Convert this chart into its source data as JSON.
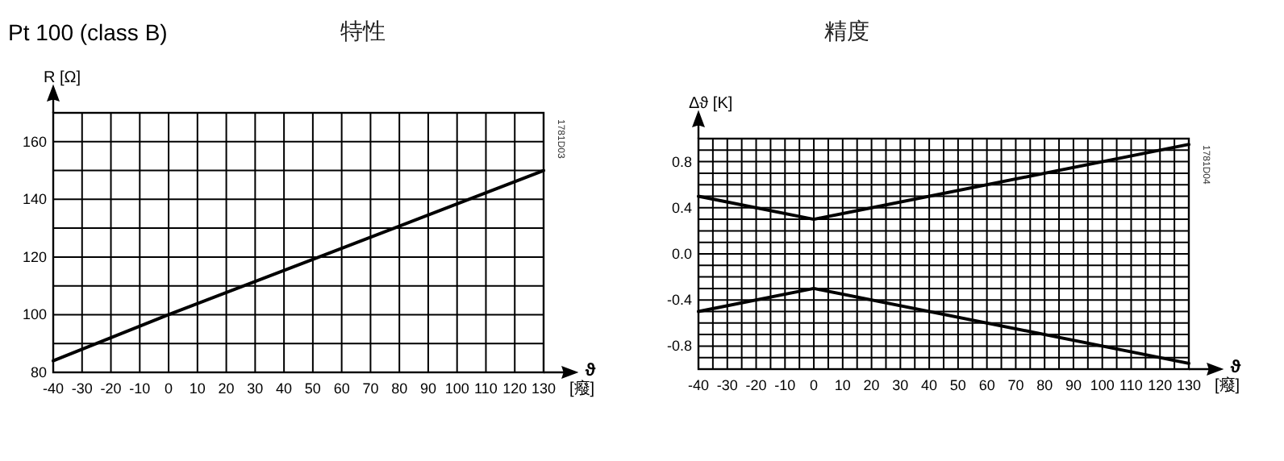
{
  "chart_data": [
    {
      "type": "line",
      "title": "特性",
      "subtitle": "Pt 100 (class B)",
      "xlabel": "ϑ",
      "ylabel": "R [Ω]",
      "annotations": [
        "[癈]",
        "1781D03"
      ],
      "grid": true,
      "xlim": [
        -40,
        130
      ],
      "ylim": [
        80,
        170
      ],
      "xticks": [
        -40,
        -30,
        -20,
        -10,
        0,
        10,
        20,
        30,
        40,
        50,
        60,
        70,
        80,
        90,
        100,
        110,
        120,
        130
      ],
      "yticks": [
        80,
        {
          "value": 90,
          "label": null
        },
        100,
        {
          "value": 110,
          "label": null
        },
        120,
        {
          "value": 130,
          "label": null
        },
        140,
        {
          "value": 150,
          "label": null
        },
        160,
        {
          "value": 170,
          "label": null
        }
      ],
      "series": [
        {
          "color": "#000000",
          "x": [
            -40,
            0,
            60,
            130
          ],
          "values": [
            84,
            100,
            123,
            150
          ]
        }
      ]
    },
    {
      "type": "line",
      "title": "精度",
      "xlabel": "ϑ",
      "ylabel": "Δϑ [K]",
      "annotations": [
        "[癈]",
        "1781D04"
      ],
      "grid": true,
      "xlim": [
        -40,
        130
      ],
      "ylim": [
        -1.0,
        1.0
      ],
      "xticks": [
        -40,
        {
          "value": -35,
          "label": null
        },
        -30,
        {
          "value": -25,
          "label": null
        },
        -20,
        {
          "value": -15,
          "label": null
        },
        -10,
        {
          "value": -5,
          "label": null
        },
        0,
        {
          "value": 5,
          "label": null
        },
        10,
        {
          "value": 15,
          "label": null
        },
        20,
        {
          "value": 25,
          "label": null
        },
        30,
        {
          "value": 35,
          "label": null
        },
        40,
        {
          "value": 45,
          "label": null
        },
        50,
        {
          "value": 55,
          "label": null
        },
        60,
        {
          "value": 65,
          "label": null
        },
        70,
        {
          "value": 75,
          "label": null
        },
        80,
        {
          "value": 85,
          "label": null
        },
        90,
        {
          "value": 95,
          "label": null
        },
        100,
        {
          "value": 105,
          "label": null
        },
        110,
        {
          "value": 115,
          "label": null
        },
        120,
        {
          "value": 125,
          "label": null
        },
        130
      ],
      "yticks": [
        {
          "value": -1.0,
          "label": null
        },
        {
          "value": -0.9,
          "label": null
        },
        -0.8,
        {
          "value": -0.7,
          "label": null
        },
        {
          "value": -0.6,
          "label": null
        },
        {
          "value": -0.5,
          "label": null
        },
        -0.4,
        {
          "value": -0.3,
          "label": null
        },
        {
          "value": -0.2,
          "label": null
        },
        {
          "value": -0.1,
          "label": null
        },
        {
          "value": 0.0,
          "label": "0.0"
        },
        {
          "value": 0.1,
          "label": null
        },
        {
          "value": 0.2,
          "label": null
        },
        {
          "value": 0.3,
          "label": null
        },
        0.4,
        {
          "value": 0.5,
          "label": null
        },
        {
          "value": 0.6,
          "label": null
        },
        {
          "value": 0.7,
          "label": null
        },
        0.8,
        {
          "value": 0.9,
          "label": null
        },
        {
          "value": 1.0,
          "label": null
        }
      ],
      "series": [
        {
          "color": "#000000",
          "x": [
            -40,
            0,
            130
          ],
          "values": [
            0.5,
            0.3,
            0.95
          ]
        },
        {
          "color": "#000000",
          "x": [
            -40,
            0,
            130
          ],
          "values": [
            -0.5,
            -0.3,
            -0.95
          ]
        }
      ]
    }
  ]
}
